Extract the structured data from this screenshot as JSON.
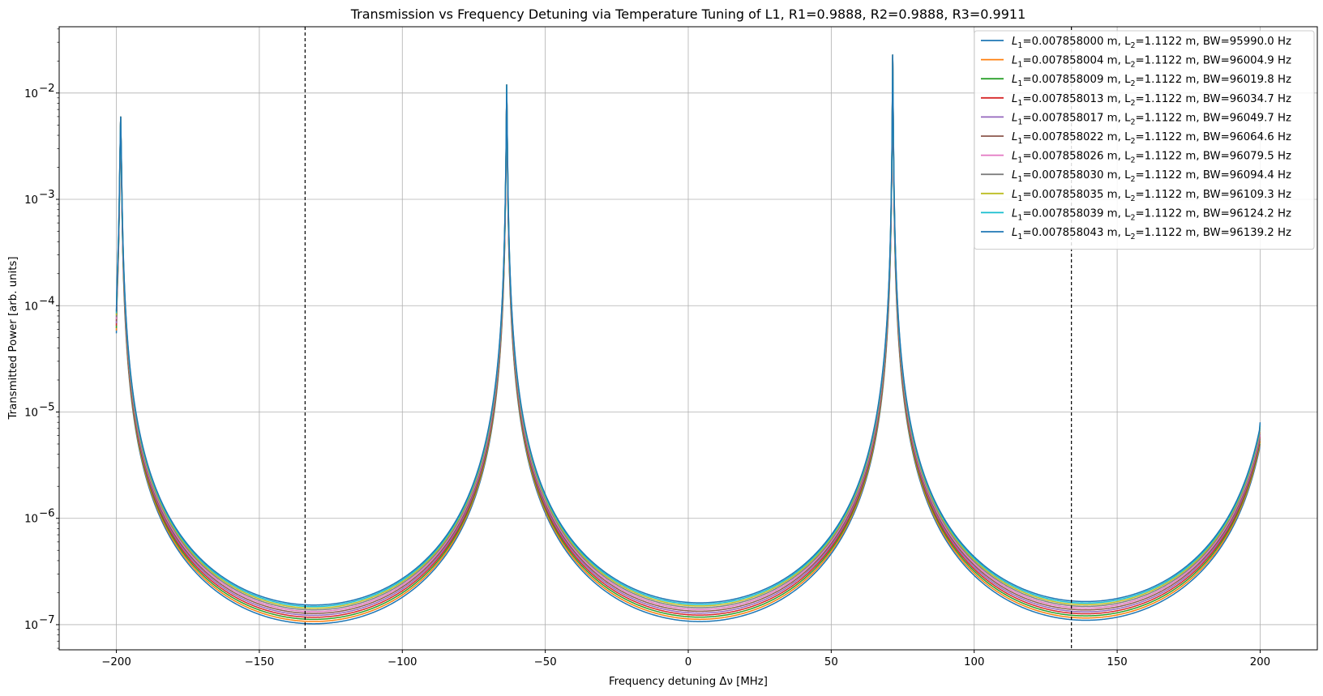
{
  "chart_data": {
    "type": "line",
    "title": "Transmission vs Frequency Detuning via Temperature Tuning of L1, R1=0.9888, R2=0.9888, R3=0.9911",
    "xlabel": "Frequency detuning Δν [MHz]",
    "ylabel": "Transmitted Power [arb. units]",
    "xlim": [
      -220,
      220
    ],
    "ylim": [
      5.8e-08,
      0.042
    ],
    "yscale": "log",
    "grid": true,
    "legend_position": "top-right",
    "x_ticks": [
      -200,
      -150,
      -100,
      -50,
      0,
      50,
      100,
      150,
      200
    ],
    "x_tick_labels": [
      "−200",
      "−150",
      "−100",
      "−50",
      "0",
      "50",
      "100",
      "150",
      "200"
    ],
    "y_ticks": [
      {
        "value": 1e-07,
        "base": "10",
        "exp": "−7"
      },
      {
        "value": 1e-06,
        "base": "10",
        "exp": "−6"
      },
      {
        "value": 1e-05,
        "base": "10",
        "exp": "−5"
      },
      {
        "value": 0.0001,
        "base": "10",
        "exp": "−4"
      },
      {
        "value": 0.001,
        "base": "10",
        "exp": "−3"
      },
      {
        "value": 0.01,
        "base": "10",
        "exp": "−2"
      }
    ],
    "vlines": [
      -134,
      134
    ],
    "resonances": [
      {
        "x": -198.5,
        "peak": 0.006
      },
      {
        "x": -63.5,
        "peak": 0.012
      },
      {
        "x": 71.5,
        "peak": 0.023
      }
    ],
    "valley_min": [
      {
        "x": -132,
        "y": 1.02e-07
      },
      {
        "x": 3,
        "y": 1.07e-07
      },
      {
        "x": 137,
        "y": 1.1e-07
      }
    ],
    "end_values": {
      "x_start": -200,
      "y_start": 5.5e-05,
      "x_end": 200,
      "y_end": 5e-06
    },
    "series": [
      {
        "name": "L1=0.007858000 m, L2=1.1122 m, BW=95990.0 Hz",
        "color": "#1f77b4",
        "min_scale": 1.0
      },
      {
        "name": "L1=0.007858004 m, L2=1.1122 m, BW=96004.9 Hz",
        "color": "#ff7f0e",
        "min_scale": 1.05
      },
      {
        "name": "L1=0.007858009 m, L2=1.1122 m, BW=96019.8 Hz",
        "color": "#2ca02c",
        "min_scale": 1.1
      },
      {
        "name": "L1=0.007858013 m, L2=1.1122 m, BW=96034.7 Hz",
        "color": "#d62728",
        "min_scale": 1.15
      },
      {
        "name": "L1=0.007858017 m, L2=1.1122 m, BW=96049.7 Hz",
        "color": "#9467bd",
        "min_scale": 1.2
      },
      {
        "name": "L1=0.007858022 m, L2=1.1122 m, BW=96064.6 Hz",
        "color": "#8c564b",
        "min_scale": 1.25
      },
      {
        "name": "L1=0.007858026 m, L2=1.1122 m, BW=96079.5 Hz",
        "color": "#e377c2",
        "min_scale": 1.3
      },
      {
        "name": "L1=0.007858030 m, L2=1.1122 m, BW=96094.4 Hz",
        "color": "#7f7f7f",
        "min_scale": 1.35
      },
      {
        "name": "L1=0.007858035 m, L2=1.1122 m, BW=96109.3 Hz",
        "color": "#bcbd22",
        "min_scale": 1.4
      },
      {
        "name": "L1=0.007858039 m, L2=1.1122 m, BW=96124.2 Hz",
        "color": "#17becf",
        "min_scale": 1.45
      },
      {
        "name": "L1=0.007858043 m, L2=1.1122 m, BW=96139.2 Hz",
        "color": "#1f77b4",
        "min_scale": 1.5
      }
    ],
    "legend": [
      {
        "prefix": "L",
        "sub1": "1",
        "mid": "=0.007858000 m, L",
        "sub2": "2",
        "suffix": "=1.1122 m, BW=95990.0 Hz"
      },
      {
        "prefix": "L",
        "sub1": "1",
        "mid": "=0.007858004 m, L",
        "sub2": "2",
        "suffix": "=1.1122 m, BW=96004.9 Hz"
      },
      {
        "prefix": "L",
        "sub1": "1",
        "mid": "=0.007858009 m, L",
        "sub2": "2",
        "suffix": "=1.1122 m, BW=96019.8 Hz"
      },
      {
        "prefix": "L",
        "sub1": "1",
        "mid": "=0.007858013 m, L",
        "sub2": "2",
        "suffix": "=1.1122 m, BW=96034.7 Hz"
      },
      {
        "prefix": "L",
        "sub1": "1",
        "mid": "=0.007858017 m, L",
        "sub2": "2",
        "suffix": "=1.1122 m, BW=96049.7 Hz"
      },
      {
        "prefix": "L",
        "sub1": "1",
        "mid": "=0.007858022 m, L",
        "sub2": "2",
        "suffix": "=1.1122 m, BW=96064.6 Hz"
      },
      {
        "prefix": "L",
        "sub1": "1",
        "mid": "=0.007858026 m, L",
        "sub2": "2",
        "suffix": "=1.1122 m, BW=96079.5 Hz"
      },
      {
        "prefix": "L",
        "sub1": "1",
        "mid": "=0.007858030 m, L",
        "sub2": "2",
        "suffix": "=1.1122 m, BW=96094.4 Hz"
      },
      {
        "prefix": "L",
        "sub1": "1",
        "mid": "=0.007858035 m, L",
        "sub2": "2",
        "suffix": "=1.1122 m, BW=96109.3 Hz"
      },
      {
        "prefix": "L",
        "sub1": "1",
        "mid": "=0.007858039 m, L",
        "sub2": "2",
        "suffix": "=1.1122 m, BW=96124.2 Hz"
      },
      {
        "prefix": "L",
        "sub1": "1",
        "mid": "=0.007858043 m, L",
        "sub2": "2",
        "suffix": "=1.1122 m, BW=96139.2 Hz"
      }
    ]
  }
}
